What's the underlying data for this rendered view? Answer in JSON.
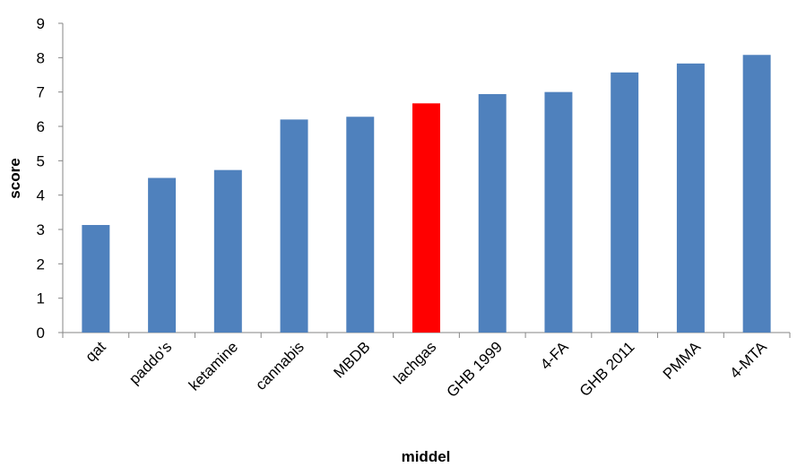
{
  "chart_data": {
    "type": "bar",
    "categories": [
      "qat",
      "paddo's",
      "ketamine",
      "cannabis",
      "MBDB",
      "lachgas",
      "GHB 1999",
      "4-FA",
      "GHB 2011",
      "PMMA",
      "4-MTA"
    ],
    "values": [
      3.13,
      4.5,
      4.73,
      6.2,
      6.28,
      6.67,
      6.94,
      7.0,
      7.57,
      7.83,
      8.08
    ],
    "xlabel": "middel",
    "ylabel": "score",
    "ylim": [
      0,
      9
    ],
    "yticks": [
      0,
      1,
      2,
      3,
      4,
      5,
      6,
      7,
      8,
      9
    ],
    "grid": false,
    "colors": {
      "default": "#4F81BD",
      "highlight": "#FF0000"
    },
    "highlight_category": "lachgas"
  }
}
